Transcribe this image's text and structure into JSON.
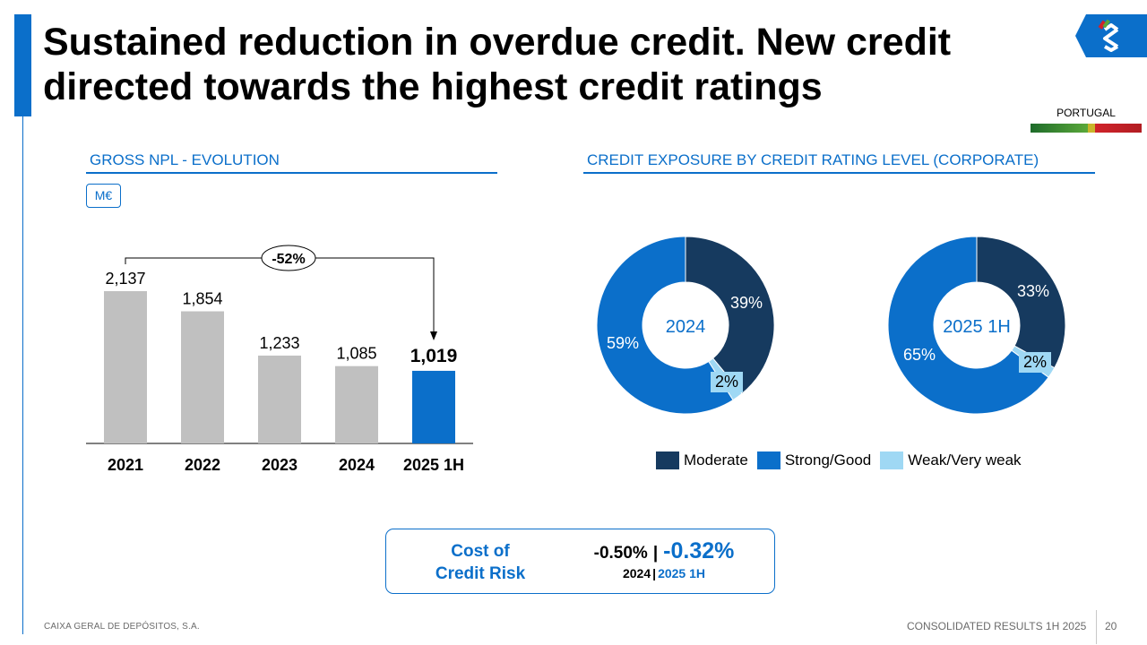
{
  "title": "Sustained reduction in overdue credit. New credit directed towards the highest credit ratings",
  "country": {
    "label": "PORTUGAL",
    "colors": [
      "#2f8a3a",
      "#c9b52b",
      "#c8202a"
    ]
  },
  "logo": {
    "icon": "cgd-logo-icon",
    "color": "#0b6fca"
  },
  "npl_section": {
    "title": "GROSS NPL - EVOLUTION",
    "unit": "M€"
  },
  "exposure_section": {
    "title": "CREDIT EXPOSURE BY CREDIT RATING LEVEL (CORPORATE)"
  },
  "chart_data": [
    {
      "type": "bar",
      "title": "GROSS NPL - EVOLUTION",
      "unit": "M€",
      "categories": [
        "2021",
        "2022",
        "2023",
        "2024",
        "2025 1H"
      ],
      "values": [
        2137,
        1854,
        1233,
        1085,
        1019
      ],
      "value_labels": [
        "2,137",
        "1,854",
        "1,233",
        "1,085",
        "1,019"
      ],
      "colors": [
        "#c0c0c0",
        "#c0c0c0",
        "#c0c0c0",
        "#c0c0c0",
        "#0b6fca"
      ],
      "highlight_index": 4,
      "annotation": {
        "text": "-52%",
        "from": "2021",
        "to": "2025 1H"
      },
      "grid": false
    },
    {
      "type": "pie",
      "subtype": "donut",
      "center_label": "2024",
      "labels": [
        "Moderate",
        "Weak/Very weak",
        "Strong/Good"
      ],
      "values": [
        39,
        2,
        59
      ],
      "value_labels": [
        "39%",
        "2%",
        "59%"
      ],
      "colors": [
        "#163a5f",
        "#9fd8f4",
        "#0b6fca"
      ],
      "legend": "bottom"
    },
    {
      "type": "pie",
      "subtype": "donut",
      "center_label": "2025 1H",
      "labels": [
        "Moderate",
        "Weak/Very weak",
        "Strong/Good"
      ],
      "values": [
        33,
        2,
        65
      ],
      "value_labels": [
        "33%",
        "2%",
        "65%"
      ],
      "colors": [
        "#163a5f",
        "#9fd8f4",
        "#0b6fca"
      ],
      "legend": "bottom"
    }
  ],
  "legend": [
    {
      "label": "Moderate",
      "color": "#163a5f"
    },
    {
      "label": "Strong/Good",
      "color": "#0b6fca"
    },
    {
      "label": "Weak/Very weak",
      "color": "#9fd8f4"
    }
  ],
  "cost_of_risk": {
    "label_line1": "Cost of",
    "label_line2": "Credit Risk",
    "value_2024": "-0.50%",
    "separator": "|",
    "value_2025": "-0.32%",
    "period_2024": "2024",
    "period_2025": "2025 1H"
  },
  "footer": {
    "company": "CAIXA GERAL DE DEPÓSITOS, S.A.",
    "report": "CONSOLIDATED RESULTS 1H 2025",
    "page": "20"
  }
}
